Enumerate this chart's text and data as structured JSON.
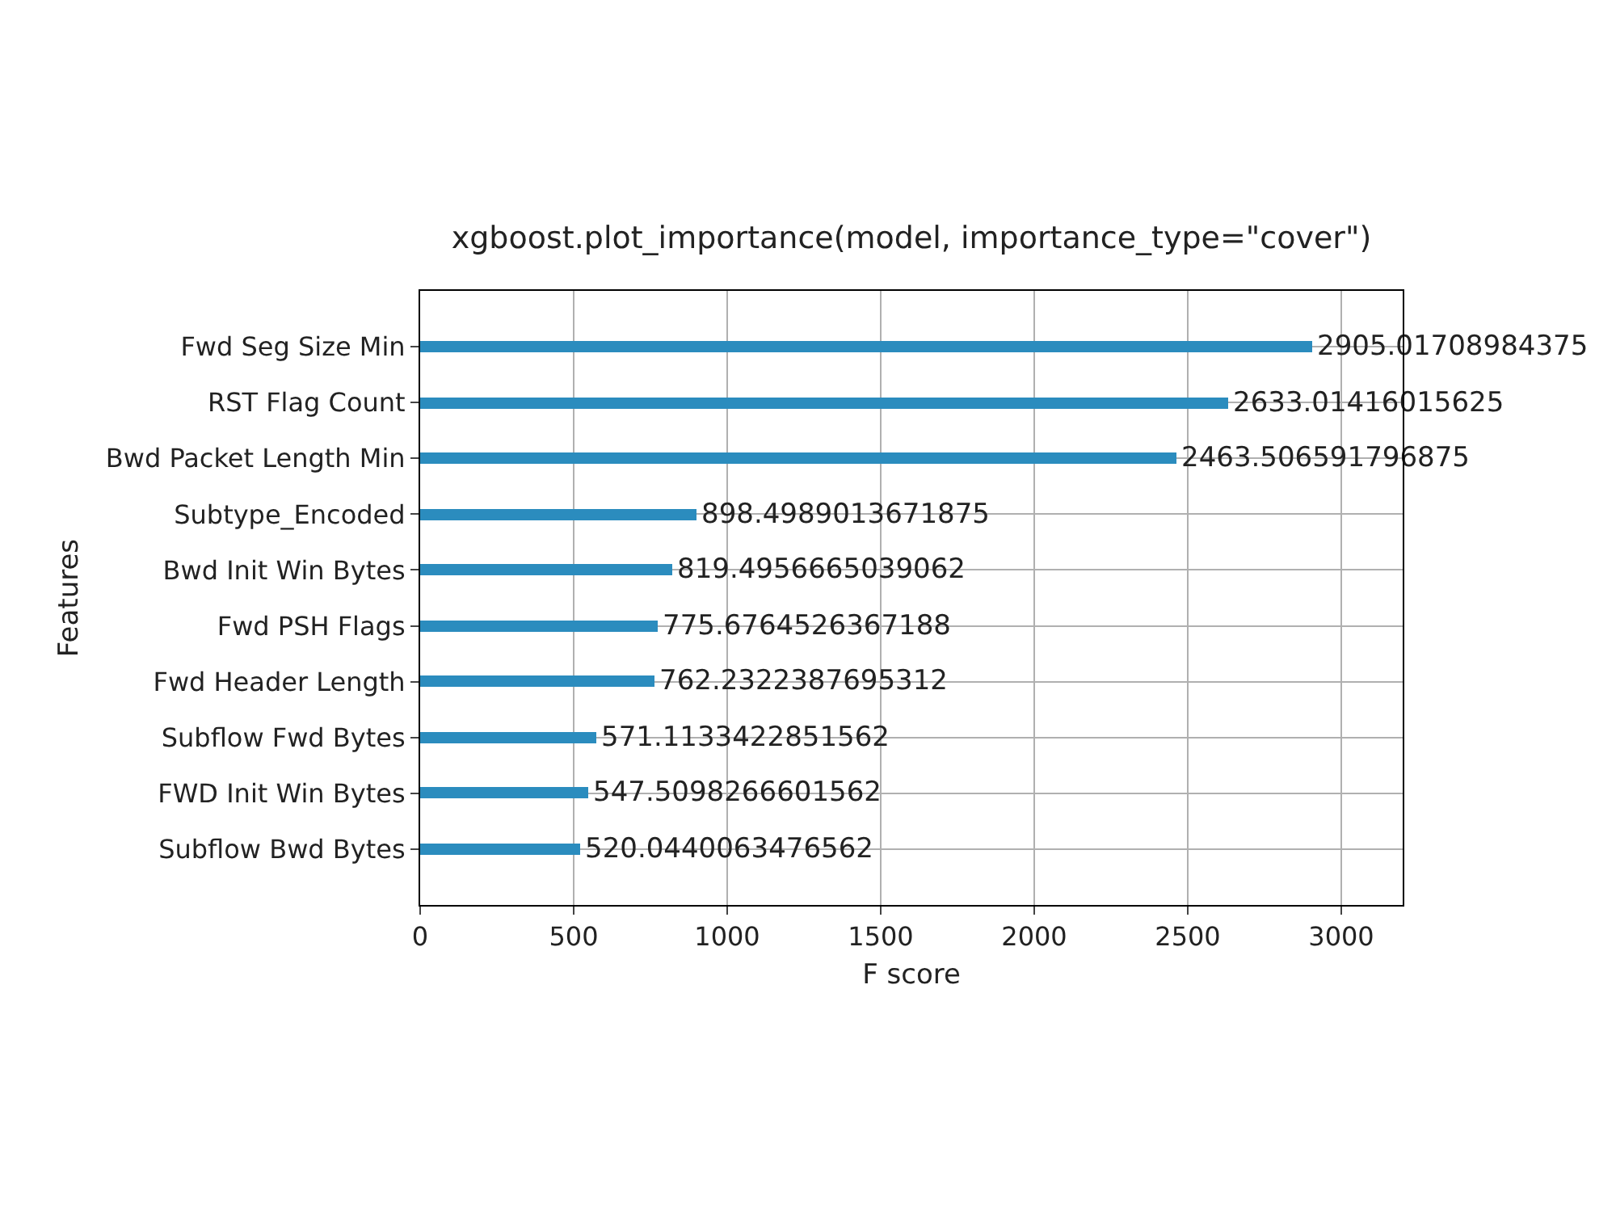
{
  "chart_data": {
    "type": "bar",
    "orientation": "horizontal",
    "title": "xgboost.plot_importance(model, importance_type=\"cover\")",
    "xlabel": "F score",
    "ylabel": "Features",
    "categories": [
      "Fwd Seg Size Min",
      "RST Flag Count",
      "Bwd Packet Length Min",
      "Subtype_Encoded",
      "Bwd Init Win Bytes",
      "Fwd PSH Flags",
      "Fwd Header Length",
      "Subflow Fwd Bytes",
      "FWD Init Win Bytes",
      "Subflow Bwd Bytes"
    ],
    "values": [
      2905.01708984375,
      2633.01416015625,
      2463.506591796875,
      898.4989013671875,
      819.4956665039062,
      775.6764526367188,
      762.2322387695312,
      571.1133422851562,
      547.5098266601562,
      520.0440063476562
    ],
    "color": "#2b8cbe",
    "data_labels": true,
    "grid": true,
    "xlim": [
      0,
      3200
    ],
    "xticks": [
      0,
      500,
      1000,
      1500,
      2000,
      2500,
      3000
    ]
  }
}
